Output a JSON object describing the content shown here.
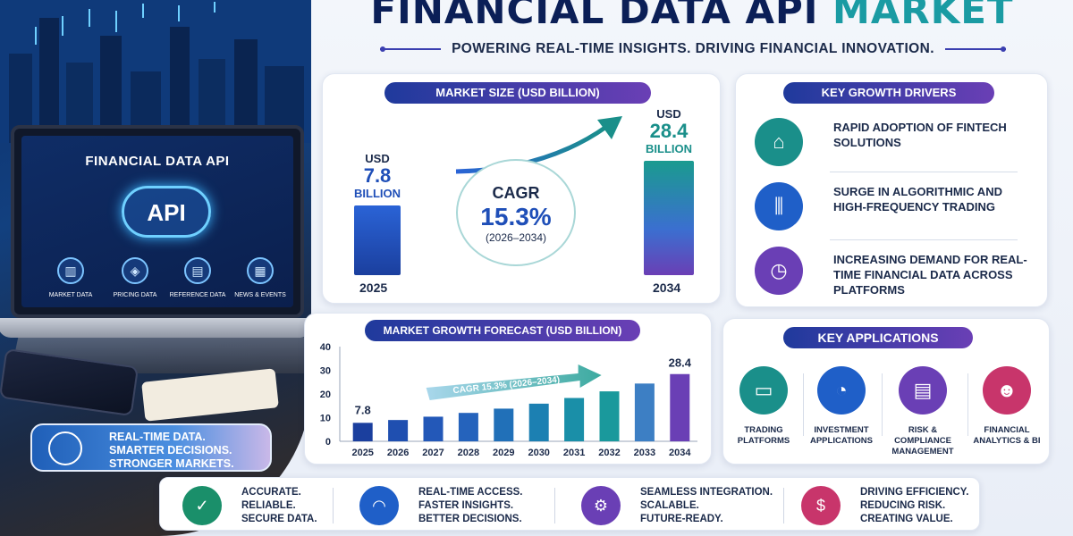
{
  "title": {
    "part1": "FINANCIAL DATA API",
    "part2": "MARKET"
  },
  "subtitle": "POWERING REAL-TIME INSIGHTS. DRIVING FINANCIAL INNOVATION.",
  "laptop": {
    "screen_title": "FINANCIAL DATA API",
    "cloud_label": "API",
    "items": [
      {
        "label": "MARKET DATA",
        "icon": "bar-chart-icon"
      },
      {
        "label": "PRICING DATA",
        "icon": "price-tag-icon"
      },
      {
        "label": "REFERENCE DATA",
        "icon": "document-icon"
      },
      {
        "label": "NEWS & EVENTS",
        "icon": "news-icon"
      }
    ]
  },
  "tagline": {
    "line1": "REAL-TIME DATA.",
    "line2": "SMARTER DECISIONS.",
    "line3": "STRONGER MARKETS."
  },
  "market_size": {
    "heading": "MARKET SIZE (USD BILLION)",
    "start": {
      "currency": "USD",
      "value": "7.8",
      "unit": "BILLION",
      "year": "2025"
    },
    "end": {
      "currency": "USD",
      "value": "28.4",
      "unit": "BILLION",
      "year": "2034"
    },
    "cagr_label": "CAGR",
    "cagr_value": "15.3%",
    "cagr_period": "(2026–2034)"
  },
  "drivers": {
    "heading": "KEY GROWTH DRIVERS",
    "items": [
      {
        "text": "RAPID ADOPTION OF FINTECH SOLUTIONS",
        "icon": "bank-mobile-icon",
        "color": "#1a8f8a"
      },
      {
        "text": "SURGE IN ALGORITHMIC AND HIGH-FREQUENCY TRADING",
        "icon": "candlestick-icon",
        "color": "#1f5fc8"
      },
      {
        "text": "INCREASING DEMAND FOR REAL-TIME FINANCIAL DATA ACROSS PLATFORMS",
        "icon": "clock-icon",
        "color": "#6a3fb5"
      }
    ]
  },
  "chart_data": {
    "type": "bar",
    "title": "MARKET GROWTH FORECAST (USD BILLION)",
    "categories": [
      "2025",
      "2026",
      "2027",
      "2028",
      "2029",
      "2030",
      "2031",
      "2032",
      "2033",
      "2034"
    ],
    "values": [
      7.8,
      9.0,
      10.4,
      12.0,
      13.8,
      15.9,
      18.3,
      21.1,
      24.4,
      28.4
    ],
    "ylim": [
      0,
      40
    ],
    "yticks": [
      "0",
      "10",
      "20",
      "30",
      "40"
    ],
    "first_label": "7.8",
    "last_label": "28.4",
    "annotation": "CAGR 15.3% (2026–2034)",
    "grid": false
  },
  "applications": {
    "heading": "KEY APPLICATIONS",
    "items": [
      {
        "label": "TRADING PLATFORMS",
        "icon": "trading-monitor-icon",
        "color": "#1a8f8a"
      },
      {
        "label": "INVESTMENT APPLICATIONS",
        "icon": "pie-chart-icon",
        "color": "#1f5fc8"
      },
      {
        "label": "RISK & COMPLIANCE MANAGEMENT",
        "icon": "clipboard-icon",
        "color": "#6a3fb5"
      },
      {
        "label": "FINANCIAL ANALYTICS & BI",
        "icon": "people-icon",
        "color": "#c8356b"
      }
    ]
  },
  "features": [
    {
      "line1": "ACCURATE.",
      "line2": "RELIABLE.",
      "line3": "SECURE DATA.",
      "icon": "shield-check-icon",
      "color": "#1a8f6a"
    },
    {
      "line1": "REAL-TIME ACCESS.",
      "line2": "FASTER INSIGHTS.",
      "line3": "BETTER DECISIONS.",
      "icon": "speedometer-icon",
      "color": "#1f5fc8"
    },
    {
      "line1": "SEAMLESS INTEGRATION.",
      "line2": "SCALABLE.",
      "line3": "FUTURE-READY.",
      "icon": "cloud-gear-icon",
      "color": "#6a3fb5"
    },
    {
      "line1": "DRIVING EFFICIENCY.",
      "line2": "REDUCING RISK.",
      "line3": "CREATING VALUE.",
      "icon": "dollar-cycle-icon",
      "color": "#c8356b"
    }
  ]
}
